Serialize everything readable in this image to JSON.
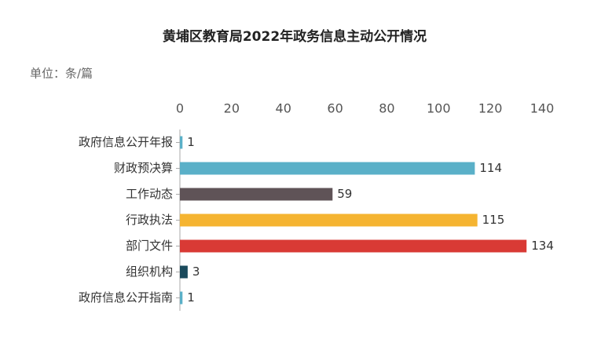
{
  "chart_data": {
    "type": "bar",
    "orientation": "horizontal",
    "title": "黄埔区教育局2022年政务信息主动公开情况",
    "unit_label": "单位：条/篇",
    "categories": [
      "政府信息公开年报",
      "财政预决算",
      "工作动态",
      "行政执法",
      "部门文件",
      "组织机构",
      "政府信息公开指南"
    ],
    "values": [
      1,
      114,
      59,
      115,
      134,
      3,
      1
    ],
    "colors": [
      "#5ab0c8",
      "#5ab0c8",
      "#5f5357",
      "#f5b431",
      "#d93a35",
      "#1a4a5c",
      "#5ab0c8"
    ],
    "xlim": [
      0,
      140
    ],
    "xticks": [
      0,
      20,
      40,
      60,
      80,
      100,
      120,
      140
    ],
    "grid": false
  }
}
